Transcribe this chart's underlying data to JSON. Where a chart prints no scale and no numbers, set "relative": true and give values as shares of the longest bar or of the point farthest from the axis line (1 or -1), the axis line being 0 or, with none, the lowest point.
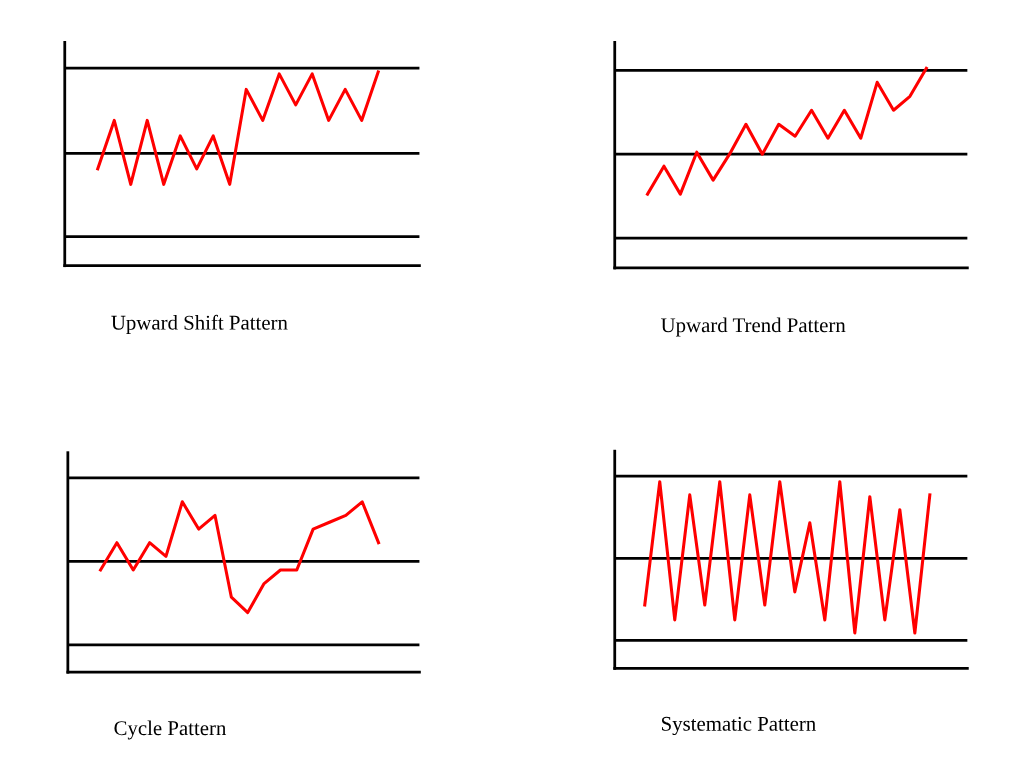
{
  "chart_data": [
    {
      "type": "line",
      "relative": true,
      "xlabel": "Upward Shift Pattern",
      "categories": [
        null,
        null,
        null,
        null,
        null,
        null,
        null,
        null,
        null,
        null,
        null,
        null,
        null,
        null,
        null,
        null,
        null,
        null
      ],
      "series": [
        {
          "color": "#ff0000",
          "values": [
            0.5,
            0.75,
            0.42,
            0.75,
            0.42,
            0.67,
            0.5,
            0.67,
            0.42,
            0.91,
            0.75,
            0.99,
            0.83,
            0.99,
            0.75,
            0.91,
            0.75,
            1.0
          ]
        }
      ],
      "ref_lines": [
        {
          "axis": "y",
          "value": 1.02,
          "color": "#000000"
        },
        {
          "axis": "y",
          "value": 0.58,
          "color": "#000000"
        },
        {
          "axis": "y",
          "value": 0.15,
          "color": "#000000"
        }
      ],
      "tick_labels": false
    },
    {
      "type": "line",
      "relative": true,
      "xlabel": "Upward Trend Pattern",
      "categories": [
        null,
        null,
        null,
        null,
        null,
        null,
        null,
        null,
        null,
        null,
        null,
        null,
        null,
        null,
        null,
        null,
        null,
        null
      ],
      "series": [
        {
          "color": "#ff0000",
          "values": [
            0.37,
            0.51,
            0.37,
            0.58,
            0.44,
            0.57,
            0.72,
            0.57,
            0.72,
            0.66,
            0.79,
            0.65,
            0.79,
            0.65,
            0.93,
            0.79,
            0.86,
            1.0
          ]
        }
      ],
      "ref_lines": [
        {
          "axis": "y",
          "value": 0.99,
          "color": "#000000"
        },
        {
          "axis": "y",
          "value": 0.57,
          "color": "#000000"
        },
        {
          "axis": "y",
          "value": 0.15,
          "color": "#000000"
        }
      ],
      "tick_labels": false
    },
    {
      "type": "line",
      "relative": true,
      "xlabel": "Cycle Pattern",
      "categories": [
        null,
        null,
        null,
        null,
        null,
        null,
        null,
        null,
        null,
        null,
        null,
        null,
        null,
        null,
        null,
        null,
        null,
        null
      ],
      "series": [
        {
          "color": "#ff0000",
          "values": [
            0.6,
            0.76,
            0.6,
            0.76,
            0.68,
            1.0,
            0.84,
            0.92,
            0.44,
            0.35,
            0.52,
            0.6,
            0.6,
            0.84,
            0.88,
            0.92,
            1.0,
            0.76
          ]
        }
      ],
      "ref_lines": [
        {
          "axis": "y",
          "value": 1.14,
          "color": "#000000"
        },
        {
          "axis": "y",
          "value": 0.65,
          "color": "#000000"
        },
        {
          "axis": "y",
          "value": 0.16,
          "color": "#000000"
        }
      ],
      "tick_labels": false
    },
    {
      "type": "line",
      "relative": true,
      "xlabel": "Systematic Pattern",
      "categories": [
        null,
        null,
        null,
        null,
        null,
        null,
        null,
        null,
        null,
        null,
        null,
        null,
        null,
        null,
        null,
        null,
        null,
        null,
        null,
        null
      ],
      "series": [
        {
          "color": "#ff0000",
          "values": [
            0.34,
            1.0,
            0.26,
            0.93,
            0.34,
            1.0,
            0.26,
            0.93,
            0.34,
            1.0,
            0.41,
            0.78,
            0.26,
            1.0,
            0.19,
            0.92,
            0.26,
            0.85,
            0.19,
            0.93
          ]
        }
      ],
      "ref_lines": [
        {
          "axis": "y",
          "value": 1.03,
          "color": "#000000"
        },
        {
          "axis": "y",
          "value": 0.59,
          "color": "#000000"
        },
        {
          "axis": "y",
          "value": 0.15,
          "color": "#000000"
        }
      ],
      "tick_labels": false
    }
  ]
}
